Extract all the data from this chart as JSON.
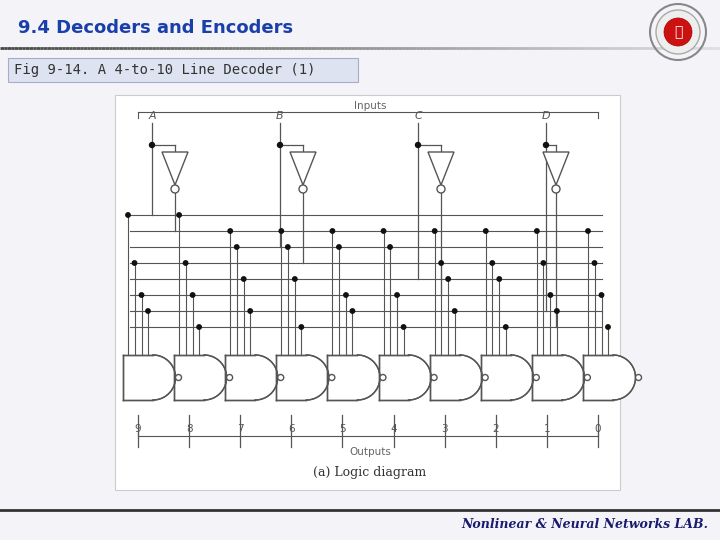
{
  "title": "9.4 Decoders and Encoders",
  "title_color": "#1a3faa",
  "subtitle": "Fig 9-14. A 4-to-10 Line Decoder (1)",
  "subtitle_bg": "#dde3f0",
  "subtitle_color": "#333333",
  "bottom_text": "Nonlinear & Neural Networks LAB.",
  "bottom_text_color": "#1a1a6e",
  "bg_color": "#f4f4f8",
  "diagram_bg": "#ffffff",
  "line_color": "#555555",
  "gate_fill": "#ffffff",
  "gate_stroke": "#555555",
  "dot_color": "#111111",
  "label_color": "#666666",
  "input_labels": [
    "A",
    "B",
    "C",
    "D"
  ],
  "output_labels": [
    "9",
    "8",
    "7",
    "6",
    "5",
    "4",
    "3",
    "2",
    "1",
    "0"
  ],
  "caption": "(a) Logic diagram",
  "inputs_label": "Inputs",
  "outputs_label": "Outputs",
  "header_line_color": "#555555",
  "logo_ring_color": "#cc2222"
}
